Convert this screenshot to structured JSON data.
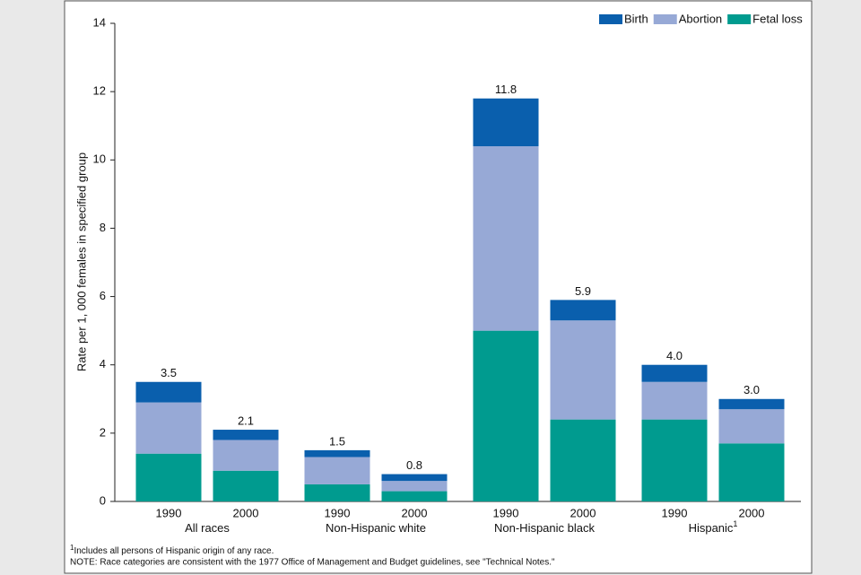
{
  "chart_data": {
    "type": "stacked-bar",
    "y_label": "Rate per 1, 000 females in specified group",
    "categories": [
      "1990",
      "2000",
      "1990",
      "2000",
      "1990",
      "2000",
      "1990",
      "2000"
    ],
    "groups": [
      {
        "label": "All races"
      },
      {
        "label": "Non-Hispanic white"
      },
      {
        "label": "Non-Hispanic black"
      },
      {
        "label": "Hispanic",
        "footnote": "1"
      }
    ],
    "series": [
      {
        "name": "Fetal loss",
        "color": "#009b8f",
        "values": [
          1.4,
          0.9,
          0.5,
          0.3,
          5.0,
          2.4,
          2.4,
          1.7
        ]
      },
      {
        "name": "Abortion",
        "color": "#97a9d6",
        "values": [
          1.5,
          0.9,
          0.8,
          0.3,
          5.4,
          2.9,
          1.1,
          1.0
        ]
      },
      {
        "name": "Birth",
        "color": "#0a5fad",
        "values": [
          0.6,
          0.3,
          0.2,
          0.2,
          1.4,
          0.6,
          0.5,
          0.3
        ]
      }
    ],
    "legend_order": [
      2,
      1,
      0
    ],
    "totals": [
      3.5,
      2.1,
      1.5,
      0.8,
      11.8,
      5.9,
      4.0,
      3.0
    ],
    "total_labels": [
      "3.5",
      "2.1",
      "1.5",
      "0.8",
      "11.8",
      "5.9",
      "4.0",
      "3.0"
    ],
    "ylim": [
      0,
      14
    ],
    "yticks": [
      0,
      2,
      4,
      6,
      8,
      10,
      12,
      14
    ],
    "grid": false,
    "footnotes": [
      {
        "mark": "1",
        "text": "Includes all persons of Hispanic origin of any race."
      }
    ],
    "note": "NOTE: Race categories are consistent with the 1977 Office of Management and Budget guidelines, see \"Technical Notes.\""
  }
}
